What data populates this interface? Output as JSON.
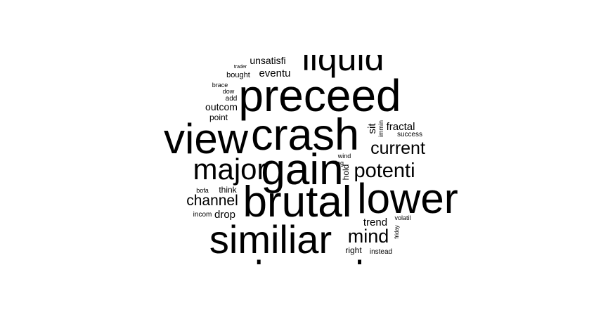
{
  "word_cloud": {
    "text_color": "#000000",
    "background_color": "#ffffff",
    "words": [
      {
        "text": "liquid"
      },
      {
        "text": "unsatisfi"
      },
      {
        "text": "trader"
      },
      {
        "text": "bought"
      },
      {
        "text": "eventu"
      },
      {
        "text": "preceed"
      },
      {
        "text": "brace"
      },
      {
        "text": "dow"
      },
      {
        "text": "add"
      },
      {
        "text": "outcom"
      },
      {
        "text": "point"
      },
      {
        "text": "view"
      },
      {
        "text": "crash"
      },
      {
        "text": "sit"
      },
      {
        "text": "immin"
      },
      {
        "text": "fractal"
      },
      {
        "text": "success"
      },
      {
        "text": "current"
      },
      {
        "text": "major"
      },
      {
        "text": "gain"
      },
      {
        "text": "wind"
      },
      {
        "text": "leg"
      },
      {
        "text": "hold"
      },
      {
        "text": "potenti"
      },
      {
        "text": "bofa"
      },
      {
        "text": "think"
      },
      {
        "text": "brutal"
      },
      {
        "text": "lower"
      },
      {
        "text": "channel"
      },
      {
        "text": "incom"
      },
      {
        "text": "drop"
      },
      {
        "text": "volatil"
      },
      {
        "text": "trend"
      },
      {
        "text": "friday"
      },
      {
        "text": "similiar"
      },
      {
        "text": "mind"
      },
      {
        "text": "right"
      },
      {
        "text": "instead"
      },
      {
        "text": "rebound"
      }
    ]
  }
}
